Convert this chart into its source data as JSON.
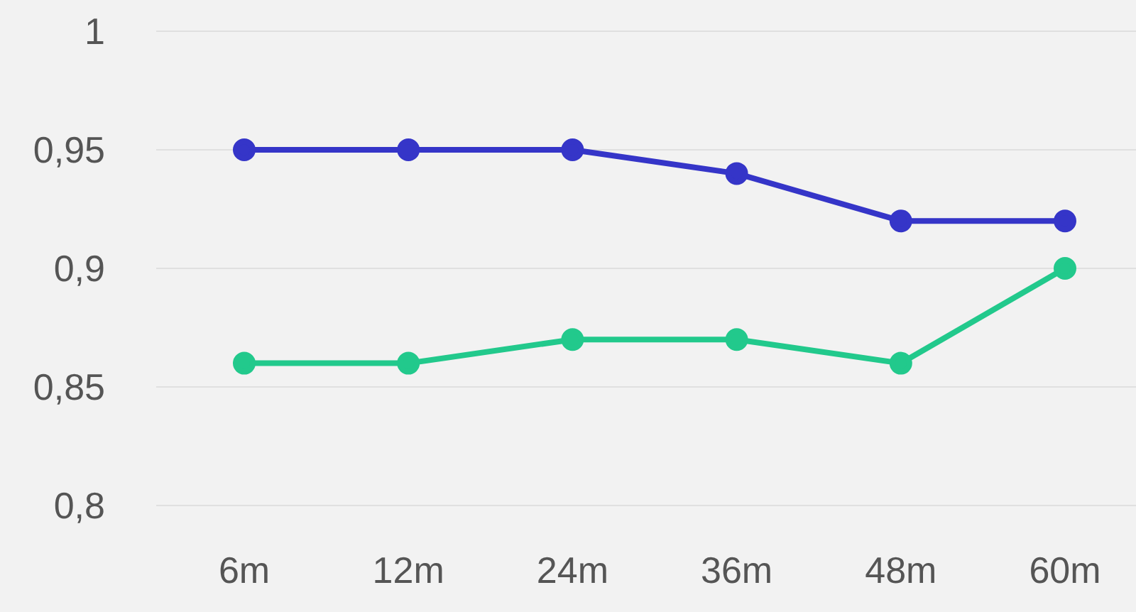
{
  "chart_data": {
    "type": "line",
    "categories": [
      "6m",
      "12m",
      "24m",
      "36m",
      "48m",
      "60m"
    ],
    "series": [
      {
        "color": "#3535c8",
        "values": [
          0.95,
          0.95,
          0.95,
          0.94,
          0.92,
          0.92
        ]
      },
      {
        "color": "#22c98c",
        "values": [
          0.86,
          0.86,
          0.87,
          0.87,
          0.86,
          0.9
        ]
      }
    ],
    "ylim": [
      0.8,
      1
    ],
    "yticks": [
      {
        "value": 0.8,
        "label": "0,8"
      },
      {
        "value": 0.85,
        "label": "0,85"
      },
      {
        "value": 0.9,
        "label": "0,9"
      },
      {
        "value": 0.95,
        "label": "0,95"
      },
      1
    ],
    "grid": "y",
    "marker": "circle",
    "legend": false
  }
}
